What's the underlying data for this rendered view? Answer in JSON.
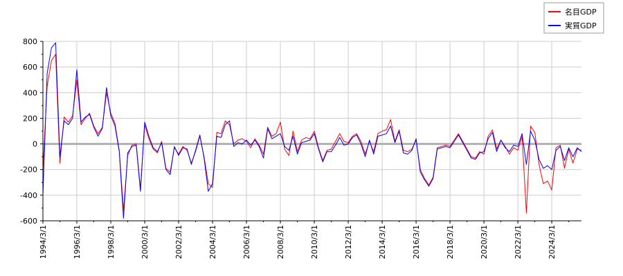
{
  "chart_data": {
    "type": "line",
    "title": "",
    "xlabel": "",
    "ylabel": "",
    "ylim": [
      -600,
      800
    ],
    "yticks": [
      -600,
      -400,
      -200,
      0,
      200,
      400,
      600,
      800
    ],
    "xlim": [
      "1994/3/1",
      "2025/12/1"
    ],
    "xtick_labels": [
      "1994/3/1",
      "1996/3/1",
      "1998/3/1",
      "2000/3/1",
      "2002/3/1",
      "2004/3/1",
      "2006/3/1",
      "2008/3/1",
      "2010/3/1",
      "2012/3/1",
      "2014/3/1",
      "2016/3/1",
      "2018/3/1",
      "2020/3/1",
      "2022/3/1",
      "2024/3/1"
    ],
    "grid": true,
    "legend_position": "top-right",
    "zero_line": true,
    "series": [
      {
        "name": "名目GDP",
        "color": "#ff0000",
        "points": [
          [
            "1994/3/1",
            -200
          ],
          [
            "1994/6/1",
            450
          ],
          [
            "1994/9/1",
            650
          ],
          [
            "1994/12/1",
            700
          ],
          [
            "1995/3/1",
            -150
          ],
          [
            "1995/6/1",
            210
          ],
          [
            "1995/9/1",
            170
          ],
          [
            "1995/12/1",
            220
          ],
          [
            "1996/3/1",
            500
          ],
          [
            "1996/6/1",
            150
          ],
          [
            "1996/9/1",
            200
          ],
          [
            "1996/12/1",
            240
          ],
          [
            "1997/3/1",
            140
          ],
          [
            "1997/6/1",
            80
          ],
          [
            "1997/9/1",
            130
          ],
          [
            "1997/12/1",
            400
          ],
          [
            "1998/3/1",
            240
          ],
          [
            "1998/6/1",
            160
          ],
          [
            "1998/9/1",
            -50
          ],
          [
            "1998/12/1",
            -520
          ],
          [
            "1999/3/1",
            -90
          ],
          [
            "1999/6/1",
            -10
          ],
          [
            "1999/9/1",
            0
          ],
          [
            "1999/12/1",
            -350
          ],
          [
            "2000/3/1",
            150
          ],
          [
            "2000/6/1",
            40
          ],
          [
            "2000/9/1",
            -40
          ],
          [
            "2000/12/1",
            -70
          ],
          [
            "2001/3/1",
            20
          ],
          [
            "2001/6/1",
            -190
          ],
          [
            "2001/9/1",
            -220
          ],
          [
            "2001/12/1",
            -30
          ],
          [
            "2002/3/1",
            -80
          ],
          [
            "2002/6/1",
            -20
          ],
          [
            "2002/9/1",
            -50
          ],
          [
            "2002/12/1",
            -150
          ],
          [
            "2003/3/1",
            -60
          ],
          [
            "2003/6/1",
            60
          ],
          [
            "2003/9/1",
            -100
          ],
          [
            "2003/12/1",
            -310
          ],
          [
            "2004/3/1",
            -340
          ],
          [
            "2004/6/1",
            90
          ],
          [
            "2004/9/1",
            80
          ],
          [
            "2004/12/1",
            180
          ],
          [
            "2005/3/1",
            150
          ],
          [
            "2005/6/1",
            0
          ],
          [
            "2005/9/1",
            30
          ],
          [
            "2005/12/1",
            40
          ],
          [
            "2006/3/1",
            20
          ],
          [
            "2006/6/1",
            -30
          ],
          [
            "2006/9/1",
            40
          ],
          [
            "2006/12/1",
            -10
          ],
          [
            "2007/3/1",
            -80
          ],
          [
            "2007/6/1",
            130
          ],
          [
            "2007/9/1",
            60
          ],
          [
            "2007/12/1",
            80
          ],
          [
            "2008/3/1",
            170
          ],
          [
            "2008/6/1",
            -40
          ],
          [
            "2008/9/1",
            -90
          ],
          [
            "2008/12/1",
            100
          ],
          [
            "2009/3/1",
            -60
          ],
          [
            "2009/6/1",
            30
          ],
          [
            "2009/9/1",
            50
          ],
          [
            "2009/12/1",
            40
          ],
          [
            "2010/3/1",
            100
          ],
          [
            "2010/6/1",
            -30
          ],
          [
            "2010/9/1",
            -130
          ],
          [
            "2010/12/1",
            -50
          ],
          [
            "2011/3/1",
            -40
          ],
          [
            "2011/6/1",
            20
          ],
          [
            "2011/9/1",
            80
          ],
          [
            "2011/12/1",
            20
          ],
          [
            "2012/3/1",
            10
          ],
          [
            "2012/6/1",
            60
          ],
          [
            "2012/9/1",
            80
          ],
          [
            "2012/12/1",
            20
          ],
          [
            "2013/3/1",
            -80
          ],
          [
            "2013/6/1",
            20
          ],
          [
            "2013/9/1",
            -60
          ],
          [
            "2013/12/1",
            80
          ],
          [
            "2014/3/1",
            100
          ],
          [
            "2014/6/1",
            110
          ],
          [
            "2014/9/1",
            190
          ],
          [
            "2014/12/1",
            20
          ],
          [
            "2015/3/1",
            110
          ],
          [
            "2015/6/1",
            -50
          ],
          [
            "2015/9/1",
            -60
          ],
          [
            "2015/12/1",
            -40
          ],
          [
            "2016/3/1",
            30
          ],
          [
            "2016/6/1",
            -200
          ],
          [
            "2016/9/1",
            -270
          ],
          [
            "2016/12/1",
            -320
          ],
          [
            "2017/3/1",
            -260
          ],
          [
            "2017/6/1",
            -30
          ],
          [
            "2017/9/1",
            -20
          ],
          [
            "2017/12/1",
            -10
          ],
          [
            "2018/3/1",
            -20
          ],
          [
            "2018/6/1",
            30
          ],
          [
            "2018/9/1",
            80
          ],
          [
            "2018/12/1",
            20
          ],
          [
            "2019/3/1",
            -40
          ],
          [
            "2019/6/1",
            -100
          ],
          [
            "2019/9/1",
            -110
          ],
          [
            "2019/12/1",
            -60
          ],
          [
            "2020/3/1",
            -80
          ],
          [
            "2020/6/1",
            60
          ],
          [
            "2020/9/1",
            110
          ],
          [
            "2020/12/1",
            -40
          ],
          [
            "2021/3/1",
            30
          ],
          [
            "2021/6/1",
            -20
          ],
          [
            "2021/9/1",
            -80
          ],
          [
            "2021/12/1",
            -30
          ],
          [
            "2022/3/1",
            -50
          ],
          [
            "2022/6/1",
            60
          ],
          [
            "2022/9/1",
            -540
          ],
          [
            "2022/12/1",
            140
          ],
          [
            "2023/3/1",
            90
          ],
          [
            "2023/6/1",
            -160
          ],
          [
            "2023/9/1",
            -310
          ],
          [
            "2023/12/1",
            -290
          ],
          [
            "2024/3/1",
            -360
          ],
          [
            "2024/6/1",
            -30
          ],
          [
            "2024/9/1",
            -10
          ],
          [
            "2024/12/1",
            -190
          ],
          [
            "2025/3/1",
            -40
          ],
          [
            "2025/6/1",
            -150
          ],
          [
            "2025/9/1",
            -40
          ],
          [
            "2025/12/1",
            -50
          ]
        ]
      },
      {
        "name": "実質GDP",
        "color": "#0000ff",
        "points": [
          [
            "1994/3/1",
            -400
          ],
          [
            "1994/6/1",
            550
          ],
          [
            "1994/9/1",
            750
          ],
          [
            "1994/12/1",
            790
          ],
          [
            "1995/3/1",
            -100
          ],
          [
            "1995/6/1",
            180
          ],
          [
            "1995/9/1",
            150
          ],
          [
            "1995/12/1",
            200
          ],
          [
            "1996/3/1",
            580
          ],
          [
            "1996/6/1",
            170
          ],
          [
            "1996/9/1",
            210
          ],
          [
            "1996/12/1",
            230
          ],
          [
            "1997/3/1",
            130
          ],
          [
            "1997/6/1",
            60
          ],
          [
            "1997/9/1",
            120
          ],
          [
            "1997/12/1",
            440
          ],
          [
            "1998/3/1",
            220
          ],
          [
            "1998/6/1",
            140
          ],
          [
            "1998/9/1",
            -60
          ],
          [
            "1998/12/1",
            -580
          ],
          [
            "1999/3/1",
            -70
          ],
          [
            "1999/6/1",
            -20
          ],
          [
            "1999/9/1",
            -10
          ],
          [
            "1999/12/1",
            -370
          ],
          [
            "2000/3/1",
            170
          ],
          [
            "2000/6/1",
            60
          ],
          [
            "2000/9/1",
            -30
          ],
          [
            "2000/12/1",
            -60
          ],
          [
            "2001/3/1",
            10
          ],
          [
            "2001/6/1",
            -200
          ],
          [
            "2001/9/1",
            -240
          ],
          [
            "2001/12/1",
            -20
          ],
          [
            "2002/3/1",
            -90
          ],
          [
            "2002/6/1",
            -30
          ],
          [
            "2002/9/1",
            -40
          ],
          [
            "2002/12/1",
            -160
          ],
          [
            "2003/3/1",
            -50
          ],
          [
            "2003/6/1",
            70
          ],
          [
            "2003/9/1",
            -110
          ],
          [
            "2003/12/1",
            -370
          ],
          [
            "2004/3/1",
            -310
          ],
          [
            "2004/6/1",
            60
          ],
          [
            "2004/9/1",
            50
          ],
          [
            "2004/12/1",
            150
          ],
          [
            "2005/3/1",
            180
          ],
          [
            "2005/6/1",
            -20
          ],
          [
            "2005/9/1",
            10
          ],
          [
            "2005/12/1",
            0
          ],
          [
            "2006/3/1",
            30
          ],
          [
            "2006/6/1",
            -10
          ],
          [
            "2006/9/1",
            30
          ],
          [
            "2006/12/1",
            -20
          ],
          [
            "2007/3/1",
            -110
          ],
          [
            "2007/6/1",
            120
          ],
          [
            "2007/9/1",
            40
          ],
          [
            "2007/12/1",
            60
          ],
          [
            "2008/3/1",
            80
          ],
          [
            "2008/6/1",
            -20
          ],
          [
            "2008/9/1",
            -50
          ],
          [
            "2008/12/1",
            60
          ],
          [
            "2009/3/1",
            -80
          ],
          [
            "2009/6/1",
            10
          ],
          [
            "2009/9/1",
            20
          ],
          [
            "2009/12/1",
            30
          ],
          [
            "2010/3/1",
            80
          ],
          [
            "2010/6/1",
            -40
          ],
          [
            "2010/9/1",
            -140
          ],
          [
            "2010/12/1",
            -60
          ],
          [
            "2011/3/1",
            -60
          ],
          [
            "2011/6/1",
            -10
          ],
          [
            "2011/9/1",
            50
          ],
          [
            "2011/12/1",
            -10
          ],
          [
            "2012/3/1",
            0
          ],
          [
            "2012/6/1",
            50
          ],
          [
            "2012/9/1",
            70
          ],
          [
            "2012/12/1",
            0
          ],
          [
            "2013/3/1",
            -100
          ],
          [
            "2013/6/1",
            30
          ],
          [
            "2013/9/1",
            -80
          ],
          [
            "2013/12/1",
            60
          ],
          [
            "2014/3/1",
            70
          ],
          [
            "2014/6/1",
            80
          ],
          [
            "2014/9/1",
            140
          ],
          [
            "2014/12/1",
            10
          ],
          [
            "2015/3/1",
            100
          ],
          [
            "2015/6/1",
            -70
          ],
          [
            "2015/9/1",
            -80
          ],
          [
            "2015/12/1",
            -50
          ],
          [
            "2016/3/1",
            40
          ],
          [
            "2016/6/1",
            -220
          ],
          [
            "2016/9/1",
            -280
          ],
          [
            "2016/12/1",
            -330
          ],
          [
            "2017/3/1",
            -270
          ],
          [
            "2017/6/1",
            -40
          ],
          [
            "2017/9/1",
            -30
          ],
          [
            "2017/12/1",
            -20
          ],
          [
            "2018/3/1",
            -30
          ],
          [
            "2018/6/1",
            20
          ],
          [
            "2018/9/1",
            70
          ],
          [
            "2018/12/1",
            10
          ],
          [
            "2019/3/1",
            -50
          ],
          [
            "2019/6/1",
            -110
          ],
          [
            "2019/9/1",
            -120
          ],
          [
            "2019/12/1",
            -70
          ],
          [
            "2020/3/1",
            -60
          ],
          [
            "2020/6/1",
            40
          ],
          [
            "2020/9/1",
            90
          ],
          [
            "2020/12/1",
            -60
          ],
          [
            "2021/3/1",
            30
          ],
          [
            "2021/6/1",
            -30
          ],
          [
            "2021/9/1",
            -60
          ],
          [
            "2021/12/1",
            -10
          ],
          [
            "2022/3/1",
            -20
          ],
          [
            "2022/6/1",
            80
          ],
          [
            "2022/9/1",
            -160
          ],
          [
            "2022/12/1",
            100
          ],
          [
            "2023/3/1",
            30
          ],
          [
            "2023/6/1",
            -120
          ],
          [
            "2023/9/1",
            -190
          ],
          [
            "2023/12/1",
            -170
          ],
          [
            "2024/3/1",
            -200
          ],
          [
            "2024/6/1",
            -50
          ],
          [
            "2024/9/1",
            -20
          ],
          [
            "2024/12/1",
            -130
          ],
          [
            "2025/3/1",
            -30
          ],
          [
            "2025/6/1",
            -100
          ],
          [
            "2025/9/1",
            -30
          ],
          [
            "2025/12/1",
            -60
          ]
        ]
      }
    ]
  }
}
